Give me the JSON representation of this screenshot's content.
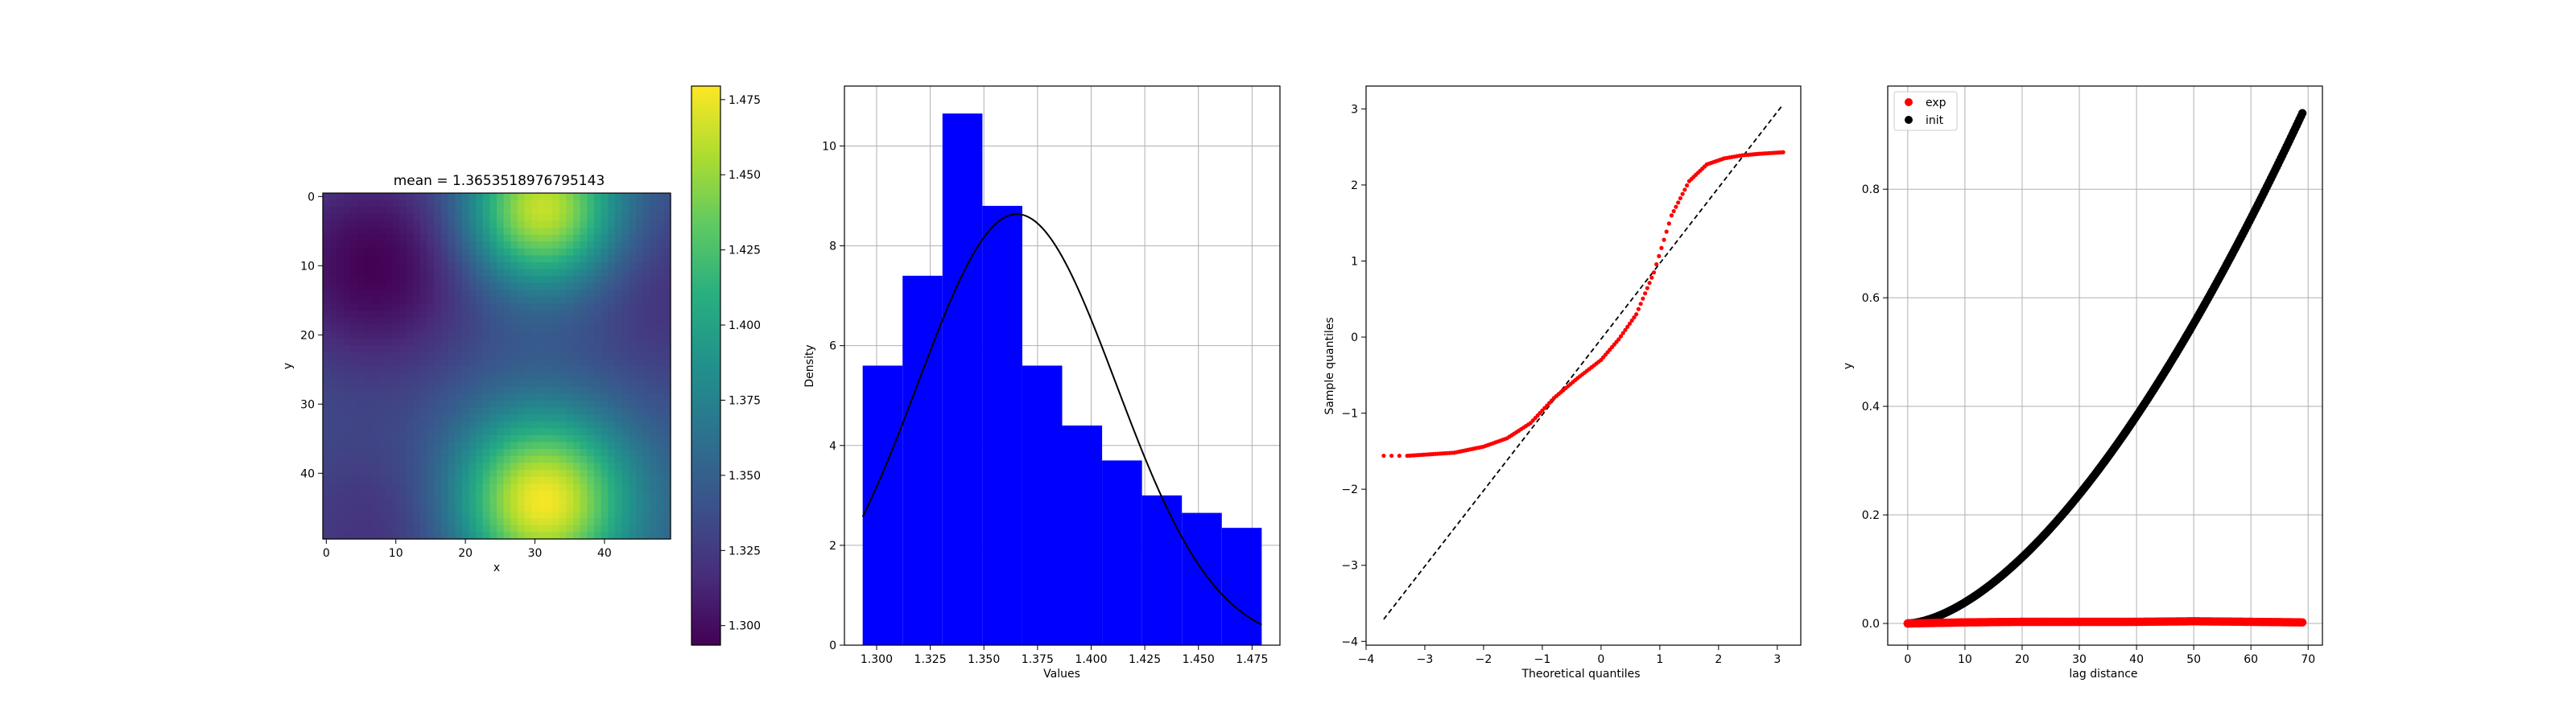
{
  "chart_data": [
    {
      "type": "heatmap",
      "title": "mean = 1.3653518976795143",
      "xlabel": "x",
      "ylabel": "y",
      "xlim": [
        -0.5,
        49.5
      ],
      "ylim": [
        49.5,
        -0.5
      ],
      "xticks": [
        0,
        10,
        20,
        30,
        40
      ],
      "yticks": [
        0,
        10,
        20,
        30,
        40
      ],
      "grid_size": [
        50,
        50
      ],
      "colormap": "viridis",
      "value_range": [
        1.2935,
        1.4795
      ],
      "field_features": [
        {
          "kind": "max",
          "x": 31,
          "y": 44,
          "value": 1.4795
        },
        {
          "kind": "max",
          "x": 31,
          "y": 2,
          "value": 1.47
        },
        {
          "kind": "min",
          "x": 7,
          "y": 10,
          "value": 1.2935
        },
        {
          "kind": "min",
          "x": 50,
          "y": 14,
          "value": 1.32
        },
        {
          "kind": "min",
          "x": 7,
          "y": 49,
          "value": 1.32
        }
      ],
      "colorbar": {
        "ticks": [
          1.3,
          1.325,
          1.35,
          1.375,
          1.4,
          1.425,
          1.45,
          1.475
        ]
      }
    },
    {
      "type": "bar",
      "subtype": "histogram",
      "xlabel": "Values",
      "ylabel": "Density",
      "xlim": [
        1.285,
        1.488
      ],
      "ylim": [
        0,
        11.2
      ],
      "xticks": [
        1.3,
        1.325,
        1.35,
        1.375,
        1.4,
        1.425,
        1.45,
        1.475
      ],
      "yticks": [
        0,
        2,
        4,
        6,
        8,
        10
      ],
      "grid": true,
      "bar_color": "#0000ff",
      "bin_edges": [
        1.2935,
        1.3121,
        1.3307,
        1.3493,
        1.3679,
        1.3865,
        1.4051,
        1.4237,
        1.4423,
        1.4609,
        1.4795
      ],
      "values": [
        5.6,
        7.4,
        10.65,
        8.8,
        5.6,
        4.4,
        3.7,
        3.0,
        2.65,
        2.35
      ],
      "fit_curve": {
        "type": "normal-pdf",
        "mean": 1.3654,
        "std": 0.0462,
        "x_range": [
          1.2935,
          1.4795
        ],
        "color": "#000000"
      }
    },
    {
      "type": "scatter",
      "subtype": "qq-plot",
      "xlabel": "Theoretical quantiles",
      "ylabel": "Sample quantiles",
      "xlim": [
        -4.0,
        3.4
      ],
      "ylim": [
        -4.05,
        3.3
      ],
      "xticks": [
        -4,
        -3,
        -2,
        -1,
        0,
        1,
        2,
        3
      ],
      "yticks": [
        -4,
        -3,
        -2,
        -1,
        0,
        1,
        2,
        3
      ],
      "grid": false,
      "point_color": "#ff0000",
      "sample_points": [
        [
          -3.7,
          -1.56
        ],
        [
          -3.3,
          -1.56
        ],
        [
          -2.5,
          -1.52
        ],
        [
          -2.0,
          -1.44
        ],
        [
          -1.6,
          -1.33
        ],
        [
          -1.2,
          -1.13
        ],
        [
          -0.8,
          -0.8
        ],
        [
          -0.4,
          -0.54
        ],
        [
          0.0,
          -0.3
        ],
        [
          0.3,
          -0.03
        ],
        [
          0.6,
          0.3
        ],
        [
          0.9,
          0.85
        ],
        [
          1.2,
          1.6
        ],
        [
          1.5,
          2.05
        ],
        [
          1.8,
          2.27
        ],
        [
          2.1,
          2.35
        ],
        [
          2.4,
          2.39
        ],
        [
          2.7,
          2.41
        ],
        [
          3.1,
          2.43
        ]
      ],
      "reference_line": {
        "from": [
          -3.7,
          -3.71
        ],
        "to": [
          3.1,
          3.06
        ],
        "style": "dashed",
        "color": "#000000"
      }
    },
    {
      "type": "scatter",
      "xlabel": "lag distance",
      "ylabel": "y",
      "xlim": [
        -3.5,
        72.5
      ],
      "ylim": [
        -0.04,
        0.99
      ],
      "xticks": [
        0,
        10,
        20,
        30,
        40,
        50,
        60,
        70
      ],
      "yticks": [
        0.0,
        0.2,
        0.4,
        0.6,
        0.8
      ],
      "grid": true,
      "legend_position": "top-left",
      "series": [
        {
          "name": "exp",
          "color": "#ff0000",
          "x_range": [
            0,
            69
          ],
          "values_note": "near zero",
          "x": [
            0,
            10,
            20,
            30,
            40,
            50,
            60,
            69
          ],
          "y": [
            0.0,
            0.002,
            0.003,
            0.003,
            0.003,
            0.004,
            0.003,
            0.002
          ]
        },
        {
          "name": "init",
          "color": "#000000",
          "x_range": [
            0,
            69
          ],
          "x": [
            0,
            10,
            20,
            30,
            40,
            50,
            60,
            69
          ],
          "y": [
            0.0,
            0.02,
            0.08,
            0.18,
            0.33,
            0.52,
            0.73,
            0.94
          ]
        }
      ]
    }
  ]
}
